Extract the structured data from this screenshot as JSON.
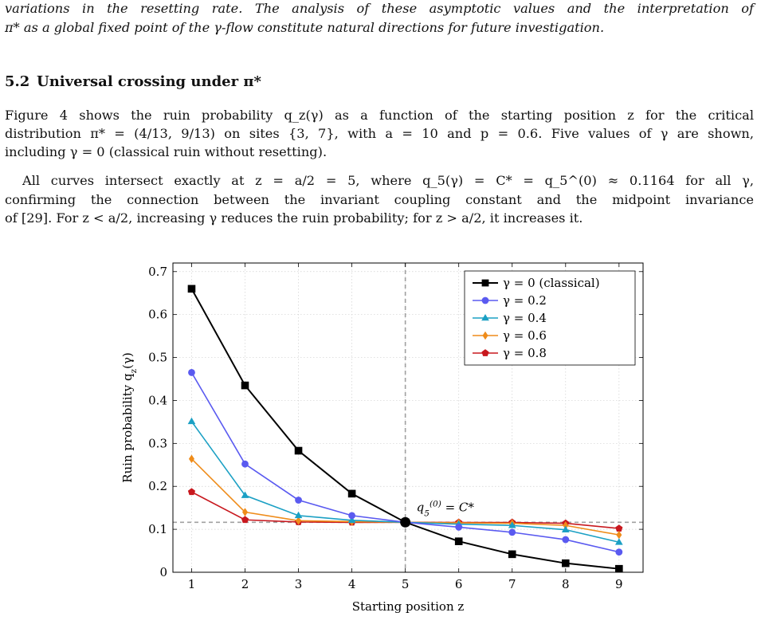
{
  "top_paragraph": {
    "line1": "variations in the resetting rate. The analysis of these asymptotic values and the interpretation of",
    "line2": "π* as a global fixed point of the γ-flow constitute natural directions for future investigation."
  },
  "section": {
    "number": "5.2",
    "title": "Universal crossing under π*"
  },
  "paragraph1": {
    "line1": "Figure 4 shows the ruin probability q_z(γ) as a function of the starting position z for the critical",
    "line2": "distribution π* = (4/13, 9/13) on sites {3, 7}, with a = 10 and p = 0.6. Five values of γ are shown,",
    "line3": "including γ = 0 (classical ruin without resetting)."
  },
  "paragraph2": {
    "line1": "All curves intersect exactly at z = a/2 = 5, where q_5(γ) = C* = q_5^(0) ≈ 0.1164 for all γ,",
    "line2": "confirming the connection between the invariant coupling constant and the midpoint invariance",
    "line3": "of [29]. For z < a/2, increasing γ reduces the ruin probability; for z > a/2, it increases it."
  },
  "chart_data": {
    "type": "line",
    "xlabel": "Starting position z",
    "ylabel": "Ruin probability q_z(γ)",
    "x": [
      1,
      2,
      3,
      4,
      5,
      6,
      7,
      8,
      9
    ],
    "xlim": [
      0.65,
      9.45
    ],
    "ylim": [
      0,
      0.72
    ],
    "xticks": [
      1,
      2,
      3,
      4,
      5,
      6,
      7,
      8,
      9
    ],
    "yticks": [
      0,
      0.1,
      0.2,
      0.3,
      0.4,
      0.5,
      0.6,
      0.7
    ],
    "ytick_labels": [
      "0",
      "0.1",
      "0.2",
      "0.3",
      "0.4",
      "0.5",
      "0.6",
      "0.7"
    ],
    "grid": true,
    "legend_position": "top-right",
    "reference_lines": {
      "vertical_x": 5,
      "horizontal_y": 0.1164
    },
    "annotation": {
      "text": "q_5^(0) = C*",
      "x": 5,
      "y": 0.1164
    },
    "series": [
      {
        "name": "γ = 0 (classical)",
        "color": "#000000",
        "marker": "square",
        "values": [
          0.66,
          0.435,
          0.283,
          0.183,
          0.1164,
          0.072,
          0.042,
          0.021,
          0.008
        ]
      },
      {
        "name": "γ = 0.2",
        "color": "#5a5af0",
        "marker": "circle",
        "values": [
          0.465,
          0.252,
          0.168,
          0.132,
          0.1164,
          0.105,
          0.093,
          0.076,
          0.047
        ]
      },
      {
        "name": "γ = 0.4",
        "color": "#1ba0c4",
        "marker": "triangle",
        "values": [
          0.351,
          0.179,
          0.132,
          0.121,
          0.1164,
          0.112,
          0.109,
          0.099,
          0.07
        ]
      },
      {
        "name": "γ = 0.6",
        "color": "#ef8c1a",
        "marker": "diamond",
        "values": [
          0.264,
          0.14,
          0.12,
          0.118,
          0.1164,
          0.115,
          0.114,
          0.109,
          0.087
        ]
      },
      {
        "name": "γ = 0.8",
        "color": "#c8181e",
        "marker": "pentagon",
        "values": [
          0.187,
          0.122,
          0.117,
          0.116,
          0.1164,
          0.116,
          0.116,
          0.114,
          0.102
        ]
      }
    ]
  }
}
